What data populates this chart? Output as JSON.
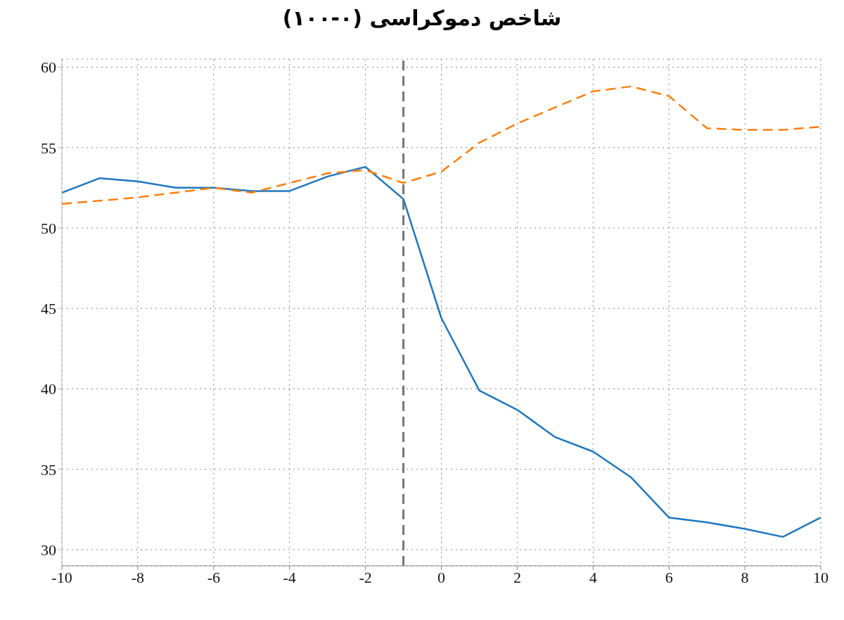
{
  "chart_data": {
    "type": "line",
    "title": "شاخص دموکراسی (۰-۱۰۰)",
    "x": [
      -10,
      -9,
      -8,
      -7,
      -6,
      -5,
      -4,
      -3,
      -2,
      -1,
      0,
      1,
      2,
      3,
      4,
      5,
      6,
      7,
      8,
      9,
      10
    ],
    "series": [
      {
        "color": "#1f77c0",
        "line_style": "solid",
        "values": [
          52.2,
          53.1,
          52.9,
          52.5,
          52.5,
          52.3,
          52.3,
          53.2,
          53.8,
          51.8,
          44.4,
          39.9,
          38.7,
          37.0,
          36.1,
          34.5,
          32.0,
          31.7,
          31.3,
          30.8,
          32.0
        ]
      },
      {
        "color": "#ff7f0e",
        "line_style": "dashed",
        "values": [
          51.5,
          51.7,
          51.9,
          52.2,
          52.5,
          52.2,
          52.8,
          53.4,
          53.6,
          52.8,
          53.5,
          55.3,
          56.5,
          57.5,
          58.5,
          58.8,
          58.2,
          56.2,
          56.1,
          56.1,
          56.3
        ]
      }
    ],
    "xlim": [
      -10,
      10
    ],
    "xticks": [
      -10,
      -8,
      -6,
      -4,
      -2,
      0,
      2,
      4,
      6,
      8,
      10
    ],
    "ylim": [
      29,
      60.5
    ],
    "yticks": [
      30,
      35,
      40,
      45,
      50,
      55,
      60
    ],
    "grid": true,
    "marker": "none",
    "legend": false,
    "ref_lines": [
      {
        "axis": "x",
        "value": -1,
        "color": "#777777",
        "line_style": "dashed"
      }
    ]
  }
}
